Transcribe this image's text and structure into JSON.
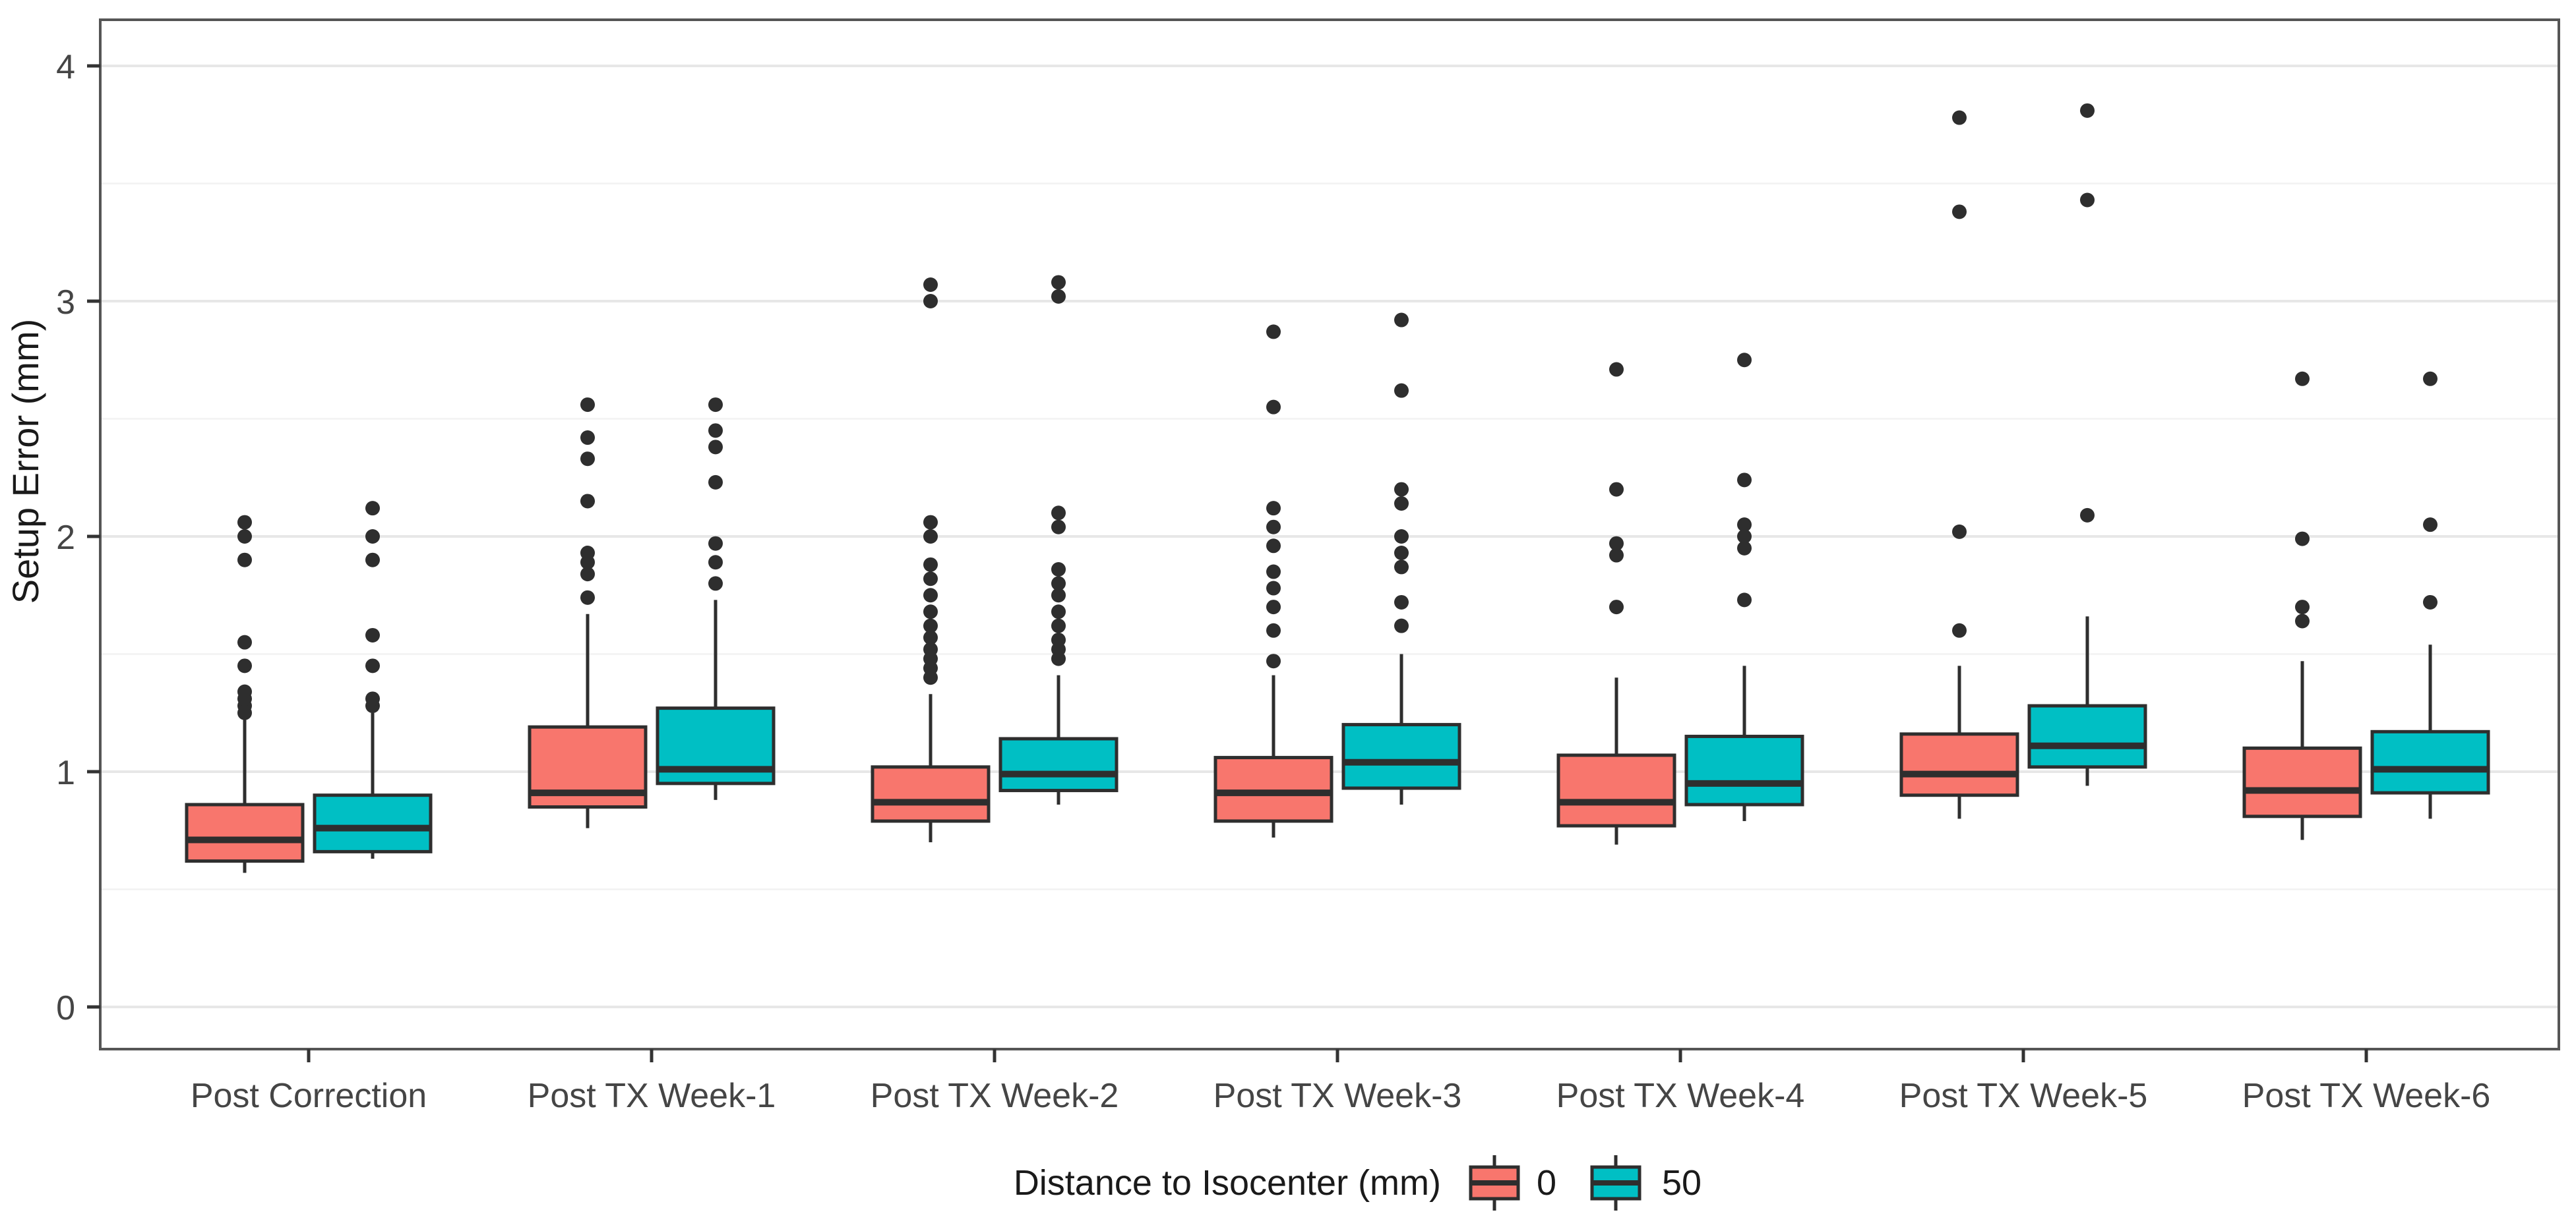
{
  "figure": {
    "y_axis_title": "Setup Error (mm)",
    "legend_title": "Distance to Isocenter (mm)",
    "y_tick_labels": [
      "0",
      "1",
      "2",
      "3",
      "4"
    ]
  },
  "chart_data": {
    "type": "grouped_boxplot",
    "title": "",
    "xlabel": "",
    "ylabel": "Setup Error (mm)",
    "ylim": [
      -0.18,
      4.2
    ],
    "y_ticks": [
      0,
      1,
      2,
      3,
      4
    ],
    "y_minor_gridlines": [
      0.5,
      1.5,
      2.5,
      3.5
    ],
    "grid": "on",
    "legend_position": "bottom",
    "legend_title": "Distance to Isocenter (mm)",
    "categories": [
      "Post Correction",
      "Post TX Week-1",
      "Post TX Week-2",
      "Post TX Week-3",
      "Post TX Week-4",
      "Post TX Week-5",
      "Post TX Week-6"
    ],
    "series": [
      {
        "name": "0",
        "color": "#F8766D",
        "boxes": [
          {
            "whisker_low": 0.57,
            "q1": 0.62,
            "median": 0.71,
            "q3": 0.86,
            "whisker_high": 1.22,
            "outliers": [
              1.25,
              1.28,
              1.31,
              1.34,
              1.45,
              1.55,
              1.9,
              2.0,
              2.06
            ]
          },
          {
            "whisker_low": 0.76,
            "q1": 0.85,
            "median": 0.91,
            "q3": 1.19,
            "whisker_high": 1.67,
            "outliers": [
              1.74,
              1.84,
              1.89,
              1.93,
              2.15,
              2.33,
              2.42,
              2.56
            ]
          },
          {
            "whisker_low": 0.7,
            "q1": 0.79,
            "median": 0.87,
            "q3": 1.02,
            "whisker_high": 1.33,
            "outliers": [
              1.4,
              1.44,
              1.48,
              1.52,
              1.57,
              1.62,
              1.68,
              1.75,
              1.82,
              1.88,
              2.0,
              2.06,
              3.0,
              3.07
            ]
          },
          {
            "whisker_low": 0.72,
            "q1": 0.79,
            "median": 0.91,
            "q3": 1.06,
            "whisker_high": 1.41,
            "outliers": [
              1.47,
              1.6,
              1.7,
              1.78,
              1.85,
              1.96,
              2.04,
              2.12,
              2.55,
              2.87
            ]
          },
          {
            "whisker_low": 0.69,
            "q1": 0.77,
            "median": 0.87,
            "q3": 1.07,
            "whisker_high": 1.4,
            "outliers": [
              1.7,
              1.92,
              1.97,
              2.2,
              2.71
            ]
          },
          {
            "whisker_low": 0.8,
            "q1": 0.9,
            "median": 0.99,
            "q3": 1.16,
            "whisker_high": 1.45,
            "outliers": [
              1.6,
              2.02,
              3.38,
              3.78
            ]
          },
          {
            "whisker_low": 0.71,
            "q1": 0.81,
            "median": 0.92,
            "q3": 1.1,
            "whisker_high": 1.47,
            "outliers": [
              1.64,
              1.7,
              1.99,
              2.67
            ]
          }
        ]
      },
      {
        "name": "50",
        "color": "#00BFC4",
        "boxes": [
          {
            "whisker_low": 0.63,
            "q1": 0.66,
            "median": 0.76,
            "q3": 0.9,
            "whisker_high": 1.25,
            "outliers": [
              1.28,
              1.31,
              1.45,
              1.58,
              1.9,
              2.0,
              2.12
            ]
          },
          {
            "whisker_low": 0.88,
            "q1": 0.95,
            "median": 1.01,
            "q3": 1.27,
            "whisker_high": 1.73,
            "outliers": [
              1.8,
              1.89,
              1.97,
              2.23,
              2.38,
              2.45,
              2.56
            ]
          },
          {
            "whisker_low": 0.86,
            "q1": 0.92,
            "median": 0.99,
            "q3": 1.14,
            "whisker_high": 1.41,
            "outliers": [
              1.48,
              1.52,
              1.56,
              1.62,
              1.68,
              1.75,
              1.8,
              1.86,
              2.04,
              2.1,
              3.02,
              3.08
            ]
          },
          {
            "whisker_low": 0.86,
            "q1": 0.93,
            "median": 1.04,
            "q3": 1.2,
            "whisker_high": 1.5,
            "outliers": [
              1.62,
              1.72,
              1.87,
              1.93,
              2.0,
              2.14,
              2.2,
              2.62,
              2.92
            ]
          },
          {
            "whisker_low": 0.79,
            "q1": 0.86,
            "median": 0.95,
            "q3": 1.15,
            "whisker_high": 1.45,
            "outliers": [
              1.73,
              1.95,
              2.0,
              2.05,
              2.24,
              2.75
            ]
          },
          {
            "whisker_low": 0.94,
            "q1": 1.02,
            "median": 1.11,
            "q3": 1.28,
            "whisker_high": 1.66,
            "outliers": [
              2.09,
              3.43,
              3.81
            ]
          },
          {
            "whisker_low": 0.8,
            "q1": 0.91,
            "median": 1.01,
            "q3": 1.17,
            "whisker_high": 1.54,
            "outliers": [
              1.72,
              2.05,
              2.67
            ]
          }
        ]
      }
    ],
    "style": {
      "box_border_color": "#2e2e2e",
      "whisker_color": "#2e2e2e",
      "outlier_color": "#2e2e2e",
      "major_gridline_color": "#e7e7e7",
      "minor_gridline_color": "#f2f2f2",
      "panel_border_color": "#555555",
      "tick_mark_color": "#333333",
      "background_color": "#ffffff"
    }
  }
}
